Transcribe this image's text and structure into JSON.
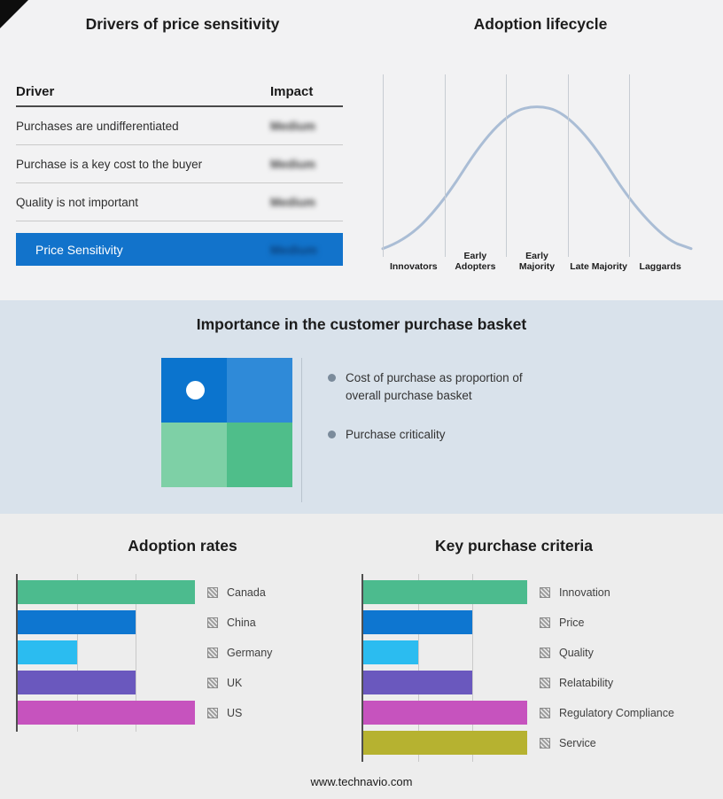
{
  "page": {
    "footer_url": "www.technavio.com"
  },
  "drivers_panel": {
    "title": "Drivers of price sensitivity",
    "header": {
      "driver": "Driver",
      "impact": "Impact"
    },
    "rows": [
      {
        "driver": "Purchases are undifferentiated",
        "impact": "Medium"
      },
      {
        "driver": "Purchase is a key cost to the buyer",
        "impact": "Medium"
      },
      {
        "driver": "Quality is not important",
        "impact": "Medium"
      }
    ],
    "summary": {
      "label": "Price Sensitivity",
      "impact": "Medium"
    },
    "summary_color": "#1273cb",
    "impact_values_blurred": true
  },
  "lifecycle_panel": {
    "curve_color": "#aabdd5"
  },
  "basket_panel": {
    "title": "Importance in the customer purchase basket",
    "bullets": [
      "Cost of purchase as proportion of overall purchase basket",
      "Purchase criticality"
    ],
    "quadrant_colors": {
      "top_left": "#0b74ce",
      "top_right": "#2f8ad8",
      "bottom_left": "#7ed0a6",
      "bottom_right": "#4fbe8a"
    }
  },
  "chart_data": [
    {
      "type": "line",
      "title": "Adoption lifecycle",
      "subtitle": "bell-shaped adoption curve, unlabeled axes",
      "categories": [
        "Innovators",
        "Early Adopters",
        "Early Majority",
        "Late Majority",
        "Laggards"
      ],
      "curve_points": [
        [
          0,
          2
        ],
        [
          8,
          8
        ],
        [
          20,
          35
        ],
        [
          32,
          75
        ],
        [
          42,
          96
        ],
        [
          50,
          100
        ],
        [
          58,
          96
        ],
        [
          68,
          75
        ],
        [
          80,
          35
        ],
        [
          92,
          8
        ],
        [
          100,
          2
        ]
      ],
      "grid": "vertical lines at stage boundaries",
      "legend_position": "none"
    },
    {
      "type": "bar",
      "title": "Adoption rates",
      "orientation": "horizontal",
      "categories": [
        "Canada",
        "China",
        "Germany",
        "UK",
        "US"
      ],
      "values": [
        3,
        2,
        1,
        2,
        3
      ],
      "xlim": [
        0,
        3
      ],
      "colors": [
        "#4cbb8e",
        "#0e76d0",
        "#2bbcf0",
        "#6a58be",
        "#c653be"
      ],
      "grid": true,
      "legend_position": "right"
    },
    {
      "type": "bar",
      "title": "Key purchase criteria",
      "orientation": "horizontal",
      "categories": [
        "Innovation",
        "Price",
        "Quality",
        "Relatability",
        "Regulatory Compliance",
        "Service"
      ],
      "values": [
        3,
        2,
        1,
        2,
        3,
        3
      ],
      "xlim": [
        0,
        3
      ],
      "colors": [
        "#4cbb8e",
        "#0e76d0",
        "#2bbcf0",
        "#6a58be",
        "#c653be",
        "#b6b230"
      ],
      "grid": true,
      "legend_position": "right"
    }
  ]
}
